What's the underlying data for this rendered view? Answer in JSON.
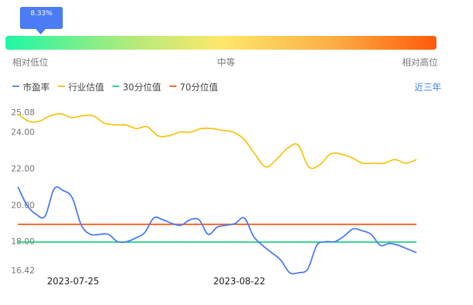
{
  "indicator": {
    "value_label": "8.33%",
    "percentile": 0.0833,
    "low_label": "相对低位",
    "mid_label": "中等",
    "high_label": "相对高位"
  },
  "legend": [
    {
      "name": "市盈率",
      "color": "#4b7cf4"
    },
    {
      "name": "行业估值",
      "color": "#f5c518"
    },
    {
      "name": "30分位值",
      "color": "#1ecf80"
    },
    {
      "name": "70分位值",
      "color": "#ff5a1a"
    }
  ],
  "range_link": "近三年",
  "chart_data": {
    "type": "line",
    "title": "",
    "xlabel": "",
    "ylabel": "",
    "ylim": [
      16.42,
      25.08
    ],
    "y_ticks": [
      "25.08",
      "24.00",
      "22.00",
      "20.00",
      "18.00",
      "16.42"
    ],
    "x_tick_labels": [
      "2023-07-25",
      "2023-08-22"
    ],
    "grid": false,
    "series": [
      {
        "name": "市盈率",
        "color": "#4b7cf4",
        "values": [
          21.0,
          20.0,
          19.5,
          19.4,
          20.9,
          20.8,
          20.4,
          18.9,
          18.4,
          18.4,
          18.4,
          18.0,
          18.0,
          18.2,
          18.5,
          19.3,
          19.2,
          19.0,
          18.9,
          19.2,
          19.2,
          18.4,
          18.8,
          18.9,
          19.0,
          19.3,
          18.3,
          17.8,
          17.4,
          17.0,
          16.3,
          16.3,
          16.5,
          17.8,
          18.0,
          18.0,
          18.3,
          18.7,
          18.6,
          18.4,
          17.8,
          17.9,
          17.8,
          17.6,
          17.4
        ]
      },
      {
        "name": "行业估值",
        "color": "#f5c518",
        "values": [
          25.0,
          24.6,
          24.6,
          24.9,
          25.0,
          24.8,
          24.9,
          24.9,
          24.5,
          24.4,
          24.4,
          24.2,
          24.3,
          23.8,
          23.8,
          24.0,
          24.0,
          24.2,
          24.2,
          24.1,
          24.0,
          23.6,
          22.8,
          22.1,
          22.5,
          23.1,
          23.3,
          22.1,
          22.2,
          22.8,
          22.8,
          22.6,
          22.3,
          22.3,
          22.3,
          22.5,
          22.3,
          22.5
        ]
      },
      {
        "name": "30分位值",
        "color": "#1ecf80",
        "values": [
          17.98,
          17.98
        ]
      },
      {
        "name": "70分位值",
        "color": "#ff5a1a",
        "values": [
          18.95,
          18.95
        ]
      }
    ]
  }
}
